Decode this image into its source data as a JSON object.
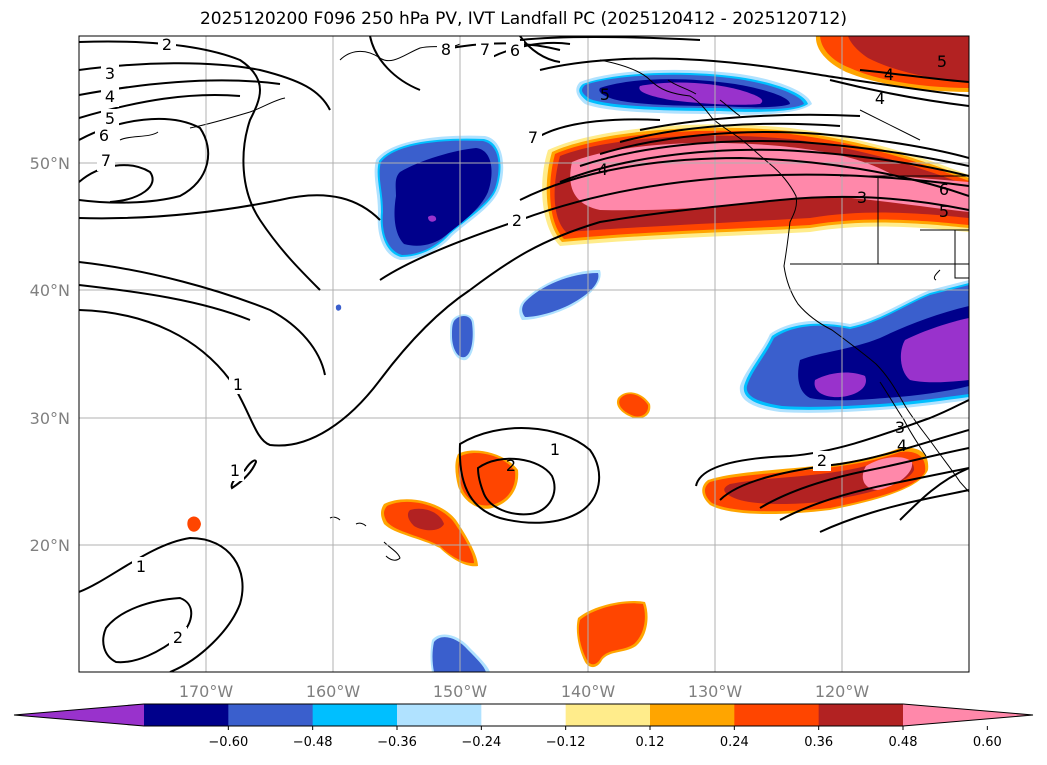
{
  "title": "2025120200 F096 250 hPa PV, IVT Landfall PC (2025120412 - 2025120712)",
  "map": {
    "lon_range": [
      -180,
      -110
    ],
    "lat_range": [
      10,
      60
    ],
    "lat_ticks": [
      "50°N",
      "40°N",
      "30°N",
      "20°N"
    ],
    "lon_ticks": [
      "170°W",
      "160°W",
      "150°W",
      "140°W",
      "130°W",
      "120°W"
    ],
    "gridlines": true
  },
  "contour_labels": [
    "2",
    "3",
    "4",
    "5",
    "6",
    "7",
    "8",
    "7",
    "6",
    "7",
    "5",
    "4",
    "4",
    "4",
    "5",
    "3",
    "6",
    "5",
    "2",
    "1",
    "1",
    "2",
    "1",
    "2",
    "3",
    "4",
    "1",
    "2"
  ],
  "colorbar": {
    "ticks": [
      "−0.60",
      "−0.48",
      "−0.36",
      "−0.24",
      "−0.12",
      "0.12",
      "0.24",
      "0.36",
      "0.48",
      "0.60"
    ],
    "colors": [
      "#9932cc",
      "#00008b",
      "#3a5fcd",
      "#00bfff",
      "#b0e2ff",
      "#ffffff",
      "#ffec8b",
      "#ffa500",
      "#ff4500",
      "#b22222",
      "#ff88aa"
    ],
    "extend": "both"
  }
}
